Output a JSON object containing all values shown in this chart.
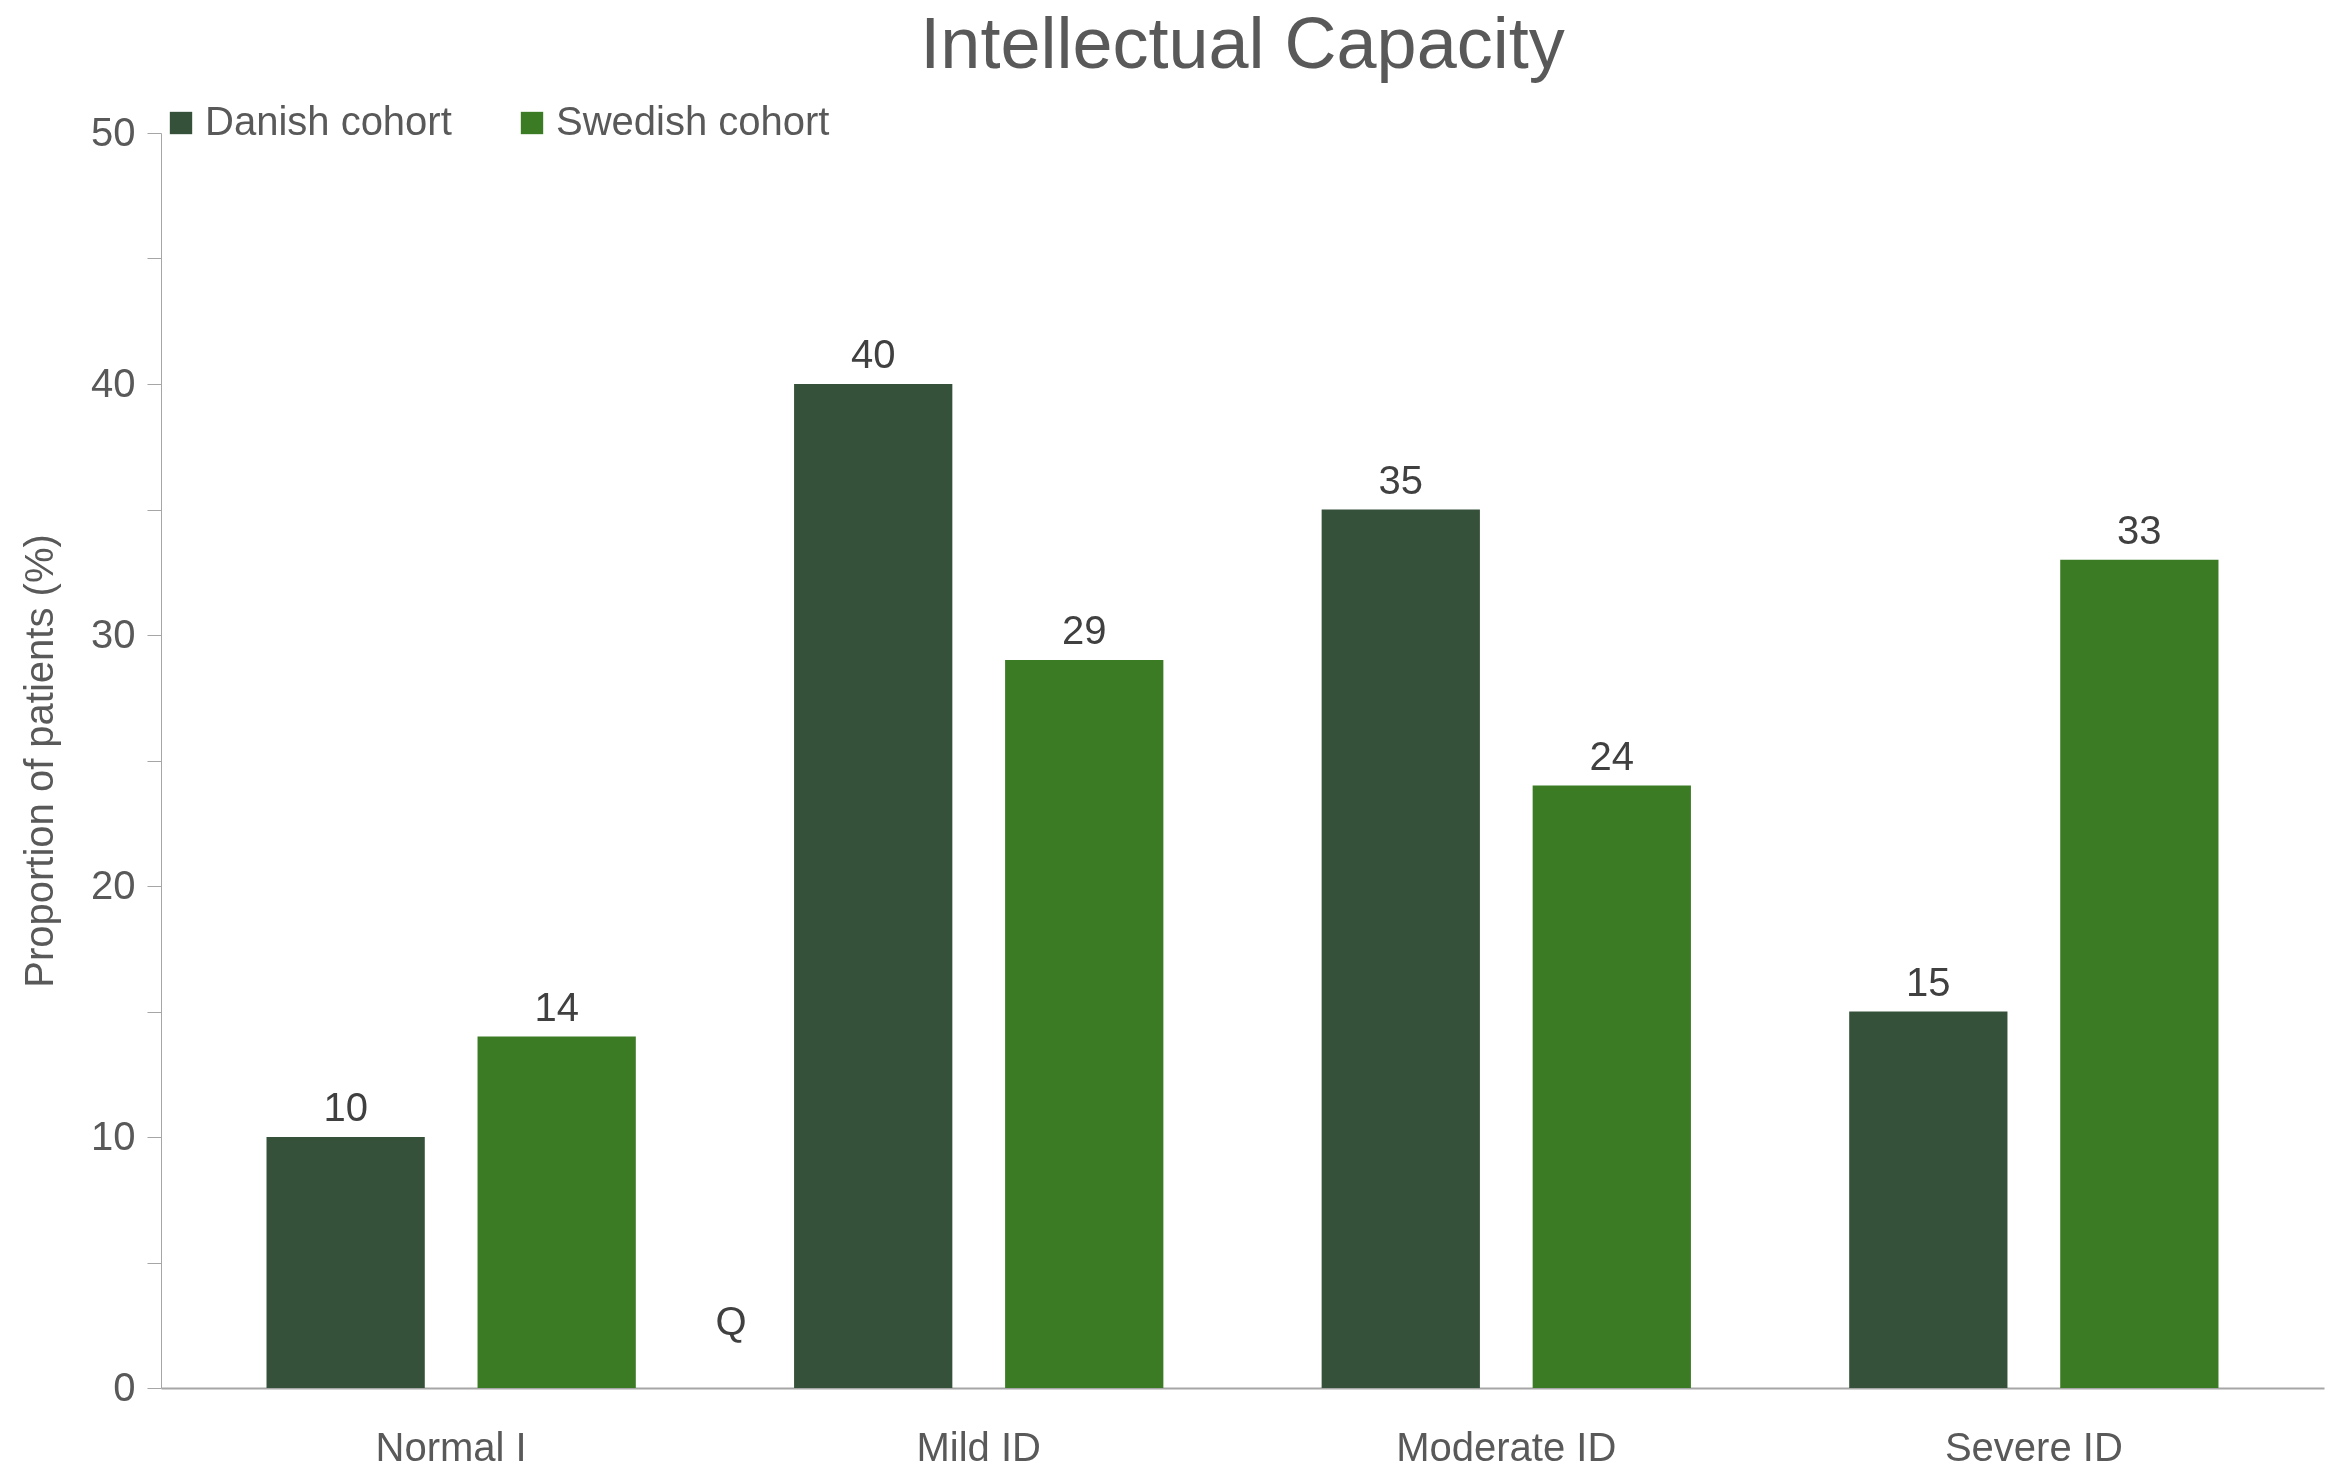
{
  "chart_data": {
    "type": "bar",
    "title": "Intellectual Capacity",
    "ylabel": "Proportion of patients (%)",
    "categories": [
      "Normal I",
      "Mild ID",
      "Moderate ID",
      "Severe ID"
    ],
    "series": [
      {
        "name": "Danish cohort",
        "color": "#36513a",
        "values": [
          10,
          40,
          35,
          15
        ]
      },
      {
        "name": "Swedish cohort",
        "color": "#3b7b24",
        "values": [
          14,
          29,
          24,
          33
        ]
      }
    ],
    "ylim": [
      0,
      50
    ],
    "yticks": [
      0,
      {
        "value": 5,
        "label": null
      },
      10,
      {
        "value": 15,
        "label": null
      },
      20,
      {
        "value": 25,
        "label": null
      },
      30,
      {
        "value": 35,
        "label": null
      },
      40,
      {
        "value": 45,
        "label": null
      },
      50
    ],
    "grid": false,
    "legend": "top",
    "data_labels": true,
    "annotations": [
      "Q"
    ]
  }
}
